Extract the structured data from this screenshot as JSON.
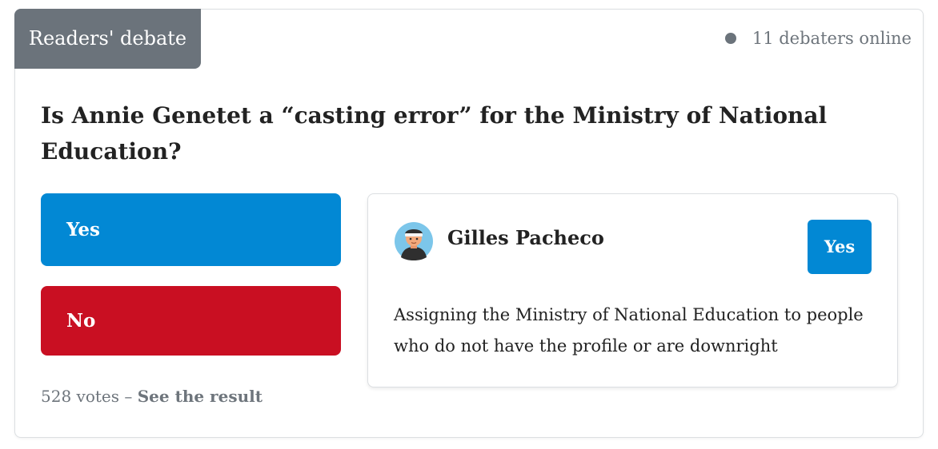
{
  "header": {
    "tag_label": "Readers' debate",
    "online_count": "11 debaters online"
  },
  "question": "Is Annie Genetet a “casting error” for the Ministry of National Education?",
  "options": {
    "yes_label": "Yes",
    "no_label": "No"
  },
  "votes": {
    "count_text": "528 votes – ",
    "result_link": "See the result"
  },
  "comment": {
    "author": "Gilles Pacheco",
    "stance": "Yes",
    "text": "Assigning the Ministry of National Education to people who do not have the profile or are downright"
  },
  "colors": {
    "yes": "#0288d4",
    "no": "#c90f22",
    "tag": "#6b737b"
  },
  "icons": {
    "online": "dot-icon",
    "avatar": "user-avatar-icon"
  }
}
